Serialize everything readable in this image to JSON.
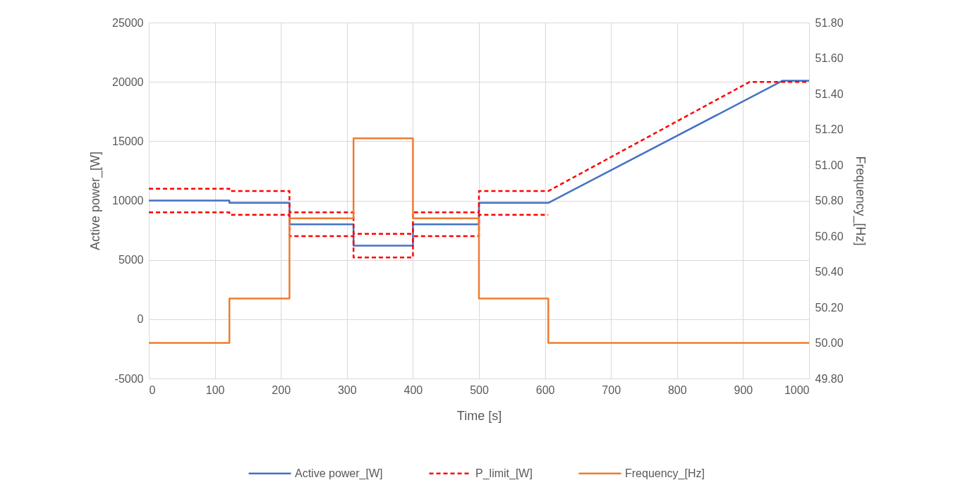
{
  "chart_data": {
    "type": "line",
    "xlabel": "Time [s]",
    "ylabel": "Active power_[W]",
    "y2label": "Frequency_[Hz]",
    "xlim": [
      0,
      1000
    ],
    "xticks": [
      0,
      100,
      200,
      300,
      400,
      500,
      600,
      700,
      800,
      900,
      1000
    ],
    "ylim": [
      -5000,
      25000
    ],
    "yticks": [
      -5000,
      0,
      5000,
      10000,
      15000,
      20000,
      25000
    ],
    "y2lim": [
      49.8,
      51.8
    ],
    "y2ticks": [
      {
        "value": 49.8,
        "label": "49.80"
      },
      {
        "value": 50.0,
        "label": "50.00"
      },
      {
        "value": 50.2,
        "label": "50.20"
      },
      {
        "value": 50.4,
        "label": "50.40"
      },
      {
        "value": 50.6,
        "label": "50.60"
      },
      {
        "value": 50.8,
        "label": "50.80"
      },
      {
        "value": 51.0,
        "label": "51.00"
      },
      {
        "value": 51.2,
        "label": "51.20"
      },
      {
        "value": 51.4,
        "label": "51.40"
      },
      {
        "value": 51.6,
        "label": "51.60"
      },
      {
        "value": 51.8,
        "label": "51.80"
      }
    ],
    "grid": true,
    "legend": "bottom",
    "series": [
      {
        "name": "Active power_[W]",
        "color": "#4472c4",
        "line_style": "solid",
        "x": [
          0,
          122,
          122,
          213,
          213,
          310,
          310,
          400,
          400,
          500,
          500,
          605,
          960,
          1000
        ],
        "values": [
          10000,
          10000,
          9800,
          9800,
          8000,
          8000,
          6200,
          6200,
          8000,
          8000,
          9800,
          9800,
          20100,
          20100
        ]
      },
      {
        "name": "P_limit_[W]",
        "color": "#ff0000",
        "line_style": "dashed",
        "x": [
          0,
          122,
          122,
          213,
          213,
          310,
          310,
          400,
          400,
          500,
          500,
          605,
          910,
          1000
        ],
        "values": [
          11000,
          11000,
          10800,
          10800,
          9000,
          9000,
          7200,
          7200,
          9000,
          9000,
          10800,
          10800,
          20000,
          20000
        ]
      },
      {
        "name": "Frequency_[Hz]",
        "color": "#ed7d31",
        "line_style": "solid",
        "axis": "y2",
        "x": [
          0,
          122,
          122,
          213,
          213,
          310,
          310,
          400,
          400,
          500,
          500,
          605,
          605,
          1000
        ],
        "values": [
          50.0,
          50.0,
          50.25,
          50.25,
          50.7,
          50.7,
          51.15,
          51.15,
          50.7,
          50.7,
          50.25,
          50.25,
          50.0,
          50.0
        ]
      },
      {
        "color": "#ff0000",
        "line_style": "dashed",
        "x": [
          0,
          122,
          122,
          213,
          213,
          310,
          310,
          400,
          400,
          500,
          500,
          605
        ],
        "values": [
          9000,
          9000,
          8800,
          8800,
          7000,
          7000,
          5200,
          5200,
          7000,
          7000,
          8800,
          8800
        ]
      }
    ]
  }
}
